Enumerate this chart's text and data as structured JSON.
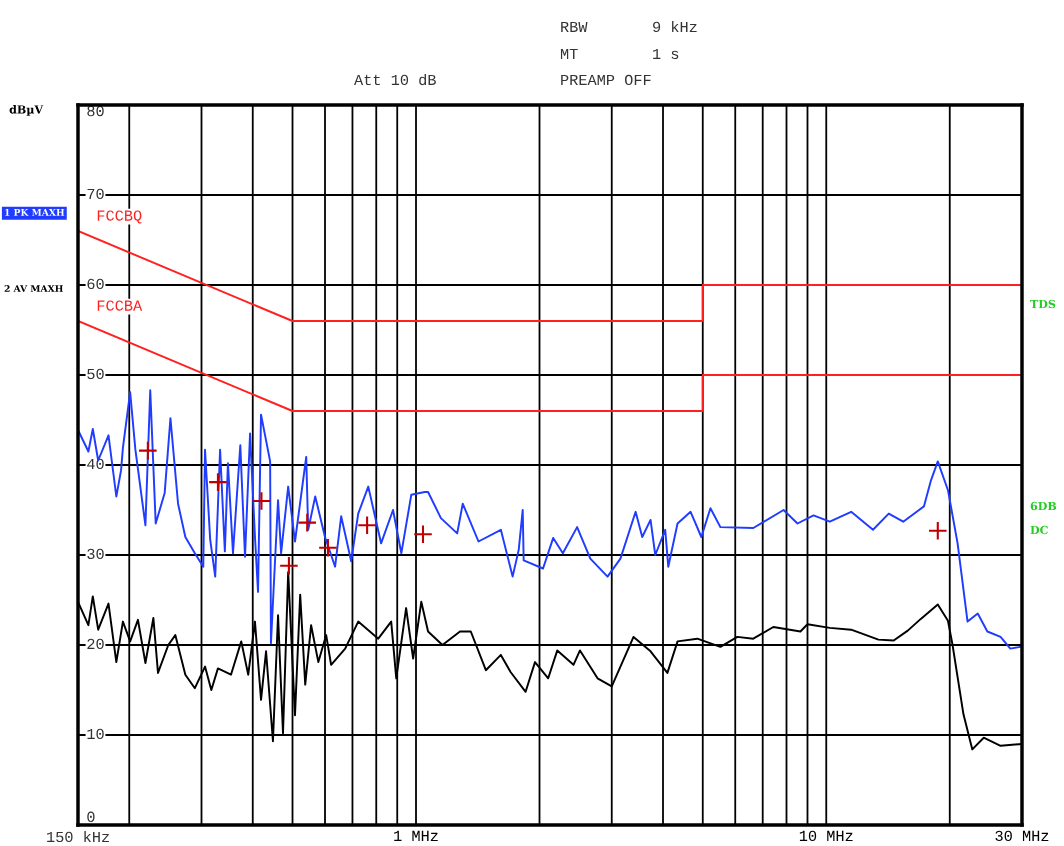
{
  "chart_data": {
    "type": "line",
    "ylabel": "dBµV",
    "annotations": [
      "RBW",
      "9 kHz",
      "MT",
      "1 s",
      "Att 10 dB",
      "PREAMP OFF",
      "TDS",
      "6DB",
      "DC",
      "150 kHz"
    ],
    "log": "x",
    "xlim": [
      0.15,
      30
    ],
    "ylim": [
      0,
      80
    ],
    "xticks": [
      {
        "value": 0.15,
        "label": null
      },
      {
        "value": 0.2,
        "label": null
      },
      {
        "value": 0.3,
        "label": null
      },
      {
        "value": 0.4,
        "label": null
      },
      {
        "value": 0.5,
        "label": null
      },
      {
        "value": 0.6,
        "label": null
      },
      {
        "value": 0.7,
        "label": null
      },
      {
        "value": 0.8,
        "label": null
      },
      {
        "value": 0.9,
        "label": null
      },
      {
        "value": 1,
        "label": "1 MHz"
      },
      {
        "value": 2,
        "label": null
      },
      {
        "value": 3,
        "label": null
      },
      {
        "value": 4,
        "label": null
      },
      {
        "value": 5,
        "label": null
      },
      {
        "value": 6,
        "label": null
      },
      {
        "value": 7,
        "label": null
      },
      {
        "value": 8,
        "label": null
      },
      {
        "value": 9,
        "label": null
      },
      {
        "value": 10,
        "label": "10 MHz"
      },
      {
        "value": 20,
        "label": null
      },
      {
        "value": 30,
        "label": "30 MHz"
      }
    ],
    "yticks": [
      0,
      10,
      20,
      30,
      40,
      50,
      60,
      70,
      80
    ],
    "grid": true,
    "legend": "left",
    "series": [
      {
        "name": "1 PK MAXH",
        "color": "#1f3cff",
        "x": [
          0.15,
          0.159,
          0.163,
          0.168,
          0.178,
          0.186,
          0.191,
          0.193,
          0.201,
          0.207,
          0.219,
          0.225,
          0.232,
          0.244,
          0.252,
          0.263,
          0.274,
          0.289,
          0.303,
          0.306,
          0.315,
          0.324,
          0.333,
          0.342,
          0.348,
          0.358,
          0.373,
          0.383,
          0.394,
          0.405,
          0.412,
          0.419,
          0.441,
          0.443,
          0.461,
          0.469,
          0.488,
          0.507,
          0.54,
          0.546,
          0.568,
          0.6,
          0.635,
          0.657,
          0.695,
          0.723,
          0.765,
          0.822,
          0.879,
          0.921,
          0.974,
          1.05,
          1.07,
          1.15,
          1.26,
          1.3,
          1.42,
          1.61,
          1.72,
          1.78,
          1.82,
          1.83,
          2.04,
          2.16,
          2.28,
          2.47,
          2.66,
          2.93,
          3.15,
          3.43,
          3.56,
          3.73,
          3.83,
          4.05,
          4.12,
          4.34,
          4.67,
          4.96,
          5.22,
          5.52,
          6.64,
          7.87,
          8.51,
          9.31,
          10.2,
          11.5,
          13.0,
          14.2,
          15.4,
          17.3,
          18.0,
          18.7,
          19.8,
          20.9,
          22.1,
          23.4,
          24.7,
          26.6,
          28.1,
          29.8
        ],
        "values": [
          43.9,
          41.5,
          44,
          40.5,
          43.3,
          36.5,
          39.4,
          41.9,
          48.1,
          41.7,
          33.3,
          48.3,
          33.5,
          36.9,
          45.2,
          35.7,
          32,
          30.2,
          28.7,
          41.7,
          31.7,
          27.6,
          41.7,
          30.4,
          40.2,
          30.2,
          42.2,
          29.8,
          43.5,
          32,
          25.9,
          45.6,
          40.4,
          20.2,
          36.1,
          30.2,
          37.6,
          31.5,
          40.9,
          32.8,
          36.5,
          32,
          28.7,
          34.3,
          29.3,
          34.6,
          37.6,
          31.3,
          35,
          30.2,
          36.7,
          37,
          37,
          34.1,
          32.4,
          35.7,
          31.5,
          32.8,
          27.6,
          30.6,
          35,
          29.4,
          28.5,
          31.9,
          30.2,
          33.1,
          29.6,
          27.6,
          29.6,
          34.8,
          32,
          33.9,
          30,
          32.8,
          28.7,
          33.5,
          34.8,
          32,
          35.2,
          33.1,
          33,
          35,
          33.5,
          34.4,
          33.7,
          34.8,
          32.8,
          34.6,
          33.7,
          35.4,
          38.3,
          40.4,
          37.2,
          31.3,
          22.6,
          23.5,
          21.5,
          20.9,
          19.6,
          19.8
        ]
      },
      {
        "name": "2 AV MAXH",
        "color": "#000000",
        "x": [
          0.15,
          0.159,
          0.163,
          0.168,
          0.178,
          0.186,
          0.193,
          0.201,
          0.21,
          0.219,
          0.229,
          0.235,
          0.249,
          0.259,
          0.274,
          0.289,
          0.306,
          0.317,
          0.329,
          0.354,
          0.375,
          0.39,
          0.405,
          0.419,
          0.431,
          0.448,
          0.461,
          0.474,
          0.488,
          0.507,
          0.522,
          0.537,
          0.555,
          0.578,
          0.604,
          0.621,
          0.672,
          0.723,
          0.809,
          0.87,
          0.895,
          0.946,
          0.984,
          1.03,
          1.07,
          1.16,
          1.28,
          1.36,
          1.48,
          1.61,
          1.7,
          1.85,
          1.95,
          2.1,
          2.21,
          2.42,
          2.51,
          2.77,
          3.0,
          3.39,
          3.73,
          4.1,
          4.34,
          4.85,
          5.52,
          6.07,
          6.64,
          7.43,
          8.65,
          9.0,
          10.2,
          11.5,
          13.4,
          14.6,
          15.8,
          17.0,
          18.7,
          19.8,
          20.3,
          21.6,
          22.7,
          24.2,
          26.6,
          29.8
        ],
        "values": [
          24.8,
          22.2,
          25.4,
          21.7,
          24.6,
          18.1,
          22.6,
          20.4,
          22.8,
          18,
          23,
          16.9,
          20,
          21.1,
          16.7,
          15.2,
          17.6,
          15,
          17.4,
          16.7,
          20.4,
          16.7,
          22.6,
          13.9,
          19.3,
          9.3,
          23.3,
          10.2,
          28.1,
          12.2,
          25.6,
          15.6,
          22.2,
          18.1,
          21.1,
          17.8,
          19.6,
          22.6,
          20.7,
          22.6,
          16.3,
          24.1,
          18.5,
          24.8,
          21.5,
          20,
          21.5,
          21.5,
          17.2,
          18.9,
          17,
          14.8,
          18.1,
          16.3,
          19.4,
          17.8,
          19.4,
          16.3,
          15.4,
          20.9,
          19.3,
          16.9,
          20.4,
          20.7,
          19.8,
          20.9,
          20.7,
          22,
          21.5,
          22.3,
          21.9,
          21.7,
          20.6,
          20.5,
          21.6,
          22.9,
          24.5,
          22.7,
          20.1,
          12.3,
          8.4,
          9.7,
          8.8,
          9
        ]
      },
      {
        "name": "FCCBQ",
        "color": "#ff2020",
        "x": [
          0.15,
          0.5,
          5,
          5,
          30
        ],
        "values": [
          66,
          56,
          56,
          60,
          60
        ]
      },
      {
        "name": "FCCBA",
        "color": "#ff2020",
        "x": [
          0.15,
          0.5,
          5,
          5,
          30
        ],
        "values": [
          56,
          46,
          46,
          50,
          50
        ]
      },
      {
        "type": "scatter",
        "marker": "cross",
        "color": "#c00000",
        "x": [
          0.222,
          0.329,
          0.42,
          0.49,
          0.543,
          0.61,
          0.76,
          1.04,
          18.7
        ],
        "values": [
          41.6,
          38.1,
          36,
          28.8,
          33.6,
          30.8,
          33.3,
          32.3,
          32.7
        ]
      }
    ]
  }
}
